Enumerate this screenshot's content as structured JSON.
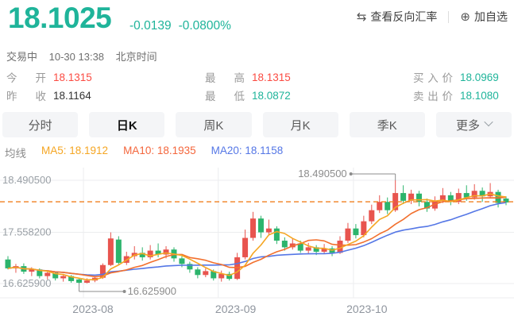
{
  "header": {
    "price": "18.1025",
    "change": "-0.0139",
    "change_pct": "-0.0800%",
    "price_color": "#1fb49a",
    "actions": {
      "reverse_rate": "查看反向汇率",
      "add_watchlist": "加自选"
    },
    "status": {
      "state": "交易中",
      "datetime": "10-30 13:38",
      "timezone": "北京时间"
    }
  },
  "stats": [
    {
      "label": "今开",
      "value": "18.1315",
      "color": "#fb4b42"
    },
    {
      "label": "昨收",
      "value": "18.1164",
      "color": "#333333"
    },
    {
      "label": "最高",
      "value": "18.1315",
      "color": "#fb4b42"
    },
    {
      "label": "最低",
      "value": "18.0872",
      "color": "#1fb49a"
    },
    {
      "label": "买入价",
      "value": "18.0969",
      "color": "#1fb49a"
    },
    {
      "label": "卖出价",
      "value": "18.1080",
      "color": "#1fb49a"
    }
  ],
  "tabs": [
    {
      "label": "分时",
      "active": false
    },
    {
      "label": "日K",
      "active": true
    },
    {
      "label": "周K",
      "active": false
    },
    {
      "label": "月K",
      "active": false
    },
    {
      "label": "季K",
      "active": false
    },
    {
      "label": "更多",
      "active": false,
      "chevron": true
    }
  ],
  "ma_legend": {
    "title": "均线",
    "items": [
      {
        "text": "MA5: 18.1912",
        "color": "#f5a623"
      },
      {
        "text": "MA10: 18.1935",
        "color": "#f4663c"
      },
      {
        "text": "MA20: 18.1158",
        "color": "#5577e6"
      }
    ]
  },
  "chart_data": {
    "type": "candlestick",
    "y_ticks": [
      "18.490500",
      "17.558200",
      "16.625900"
    ],
    "y_tick_values": [
      18.4905,
      17.5582,
      16.6259
    ],
    "x_ticks": [
      "2023-08",
      "2023-09",
      "2023-10"
    ],
    "x_tick_indices": [
      10.75,
      28.8,
      45.4
    ],
    "x_grid_indices": [
      9.55,
      26.6,
      43.7
    ],
    "current_price": 18.1025,
    "ma_periods": [
      5,
      10,
      20
    ],
    "annotations": {
      "high": {
        "label": "18.490500",
        "value": 18.4905,
        "index": 49
      },
      "low": {
        "label": "16.625900",
        "value": 16.6259,
        "index": 9
      }
    },
    "candles": [
      [
        17.06,
        17.12,
        16.88,
        16.9
      ],
      [
        16.9,
        16.98,
        16.82,
        16.94
      ],
      [
        16.94,
        16.99,
        16.8,
        16.84
      ],
      [
        16.84,
        16.92,
        16.76,
        16.88
      ],
      [
        16.88,
        16.9,
        16.72,
        16.76
      ],
      [
        16.76,
        16.86,
        16.7,
        16.82
      ],
      [
        16.82,
        16.84,
        16.68,
        16.72
      ],
      [
        16.72,
        16.8,
        16.66,
        16.76
      ],
      [
        16.76,
        16.78,
        16.64,
        16.67
      ],
      [
        16.7,
        16.72,
        16.6259,
        16.64
      ],
      [
        16.64,
        16.72,
        16.63,
        16.68
      ],
      [
        16.68,
        16.76,
        16.65,
        16.73
      ],
      [
        16.73,
        16.99,
        16.71,
        16.96
      ],
      [
        16.96,
        17.55,
        16.94,
        17.44
      ],
      [
        17.42,
        17.48,
        16.96,
        17.0
      ],
      [
        17.0,
        17.2,
        16.96,
        17.12
      ],
      [
        17.12,
        17.3,
        17.06,
        17.18
      ],
      [
        17.18,
        17.28,
        17.04,
        17.1
      ],
      [
        17.1,
        17.32,
        17.06,
        17.22
      ],
      [
        17.22,
        17.35,
        17.1,
        17.15
      ],
      [
        17.15,
        17.3,
        17.08,
        17.24
      ],
      [
        17.24,
        17.28,
        17.02,
        17.08
      ],
      [
        17.08,
        17.12,
        16.92,
        16.98
      ],
      [
        16.98,
        17.02,
        16.82,
        16.88
      ],
      [
        16.88,
        16.92,
        16.72,
        16.78
      ],
      [
        16.78,
        16.9,
        16.74,
        16.85
      ],
      [
        16.85,
        16.88,
        16.68,
        16.72
      ],
      [
        16.72,
        16.86,
        16.66,
        16.8
      ],
      [
        16.8,
        16.84,
        16.68,
        16.71
      ],
      [
        16.71,
        17.18,
        16.69,
        17.1
      ],
      [
        17.1,
        17.6,
        17.06,
        17.45
      ],
      [
        17.45,
        17.92,
        17.4,
        17.8
      ],
      [
        17.8,
        17.85,
        17.45,
        17.55
      ],
      [
        17.55,
        17.78,
        17.5,
        17.62
      ],
      [
        17.62,
        17.66,
        17.34,
        17.4
      ],
      [
        17.4,
        17.46,
        17.22,
        17.28
      ],
      [
        17.28,
        17.44,
        17.24,
        17.35
      ],
      [
        17.35,
        17.4,
        17.18,
        17.22
      ],
      [
        17.22,
        17.36,
        17.16,
        17.28
      ],
      [
        17.28,
        17.32,
        17.14,
        17.2
      ],
      [
        17.2,
        17.34,
        17.16,
        17.26
      ],
      [
        17.26,
        17.3,
        17.12,
        17.18
      ],
      [
        17.18,
        17.48,
        17.16,
        17.4
      ],
      [
        17.4,
        17.72,
        17.36,
        17.62
      ],
      [
        17.62,
        17.7,
        17.44,
        17.5
      ],
      [
        17.5,
        17.85,
        17.46,
        17.75
      ],
      [
        17.75,
        18.05,
        17.7,
        17.95
      ],
      [
        17.95,
        18.22,
        17.9,
        18.1
      ],
      [
        18.1,
        18.18,
        17.88,
        17.95
      ],
      [
        17.95,
        18.4905,
        17.92,
        18.26
      ],
      [
        18.26,
        18.4,
        18.06,
        18.12
      ],
      [
        18.12,
        18.32,
        18.06,
        18.25
      ],
      [
        18.25,
        18.3,
        18.02,
        18.1
      ],
      [
        18.1,
        18.16,
        17.92,
        17.98
      ],
      [
        17.98,
        18.2,
        17.94,
        18.12
      ],
      [
        18.12,
        18.35,
        18.08,
        18.22
      ],
      [
        18.22,
        18.28,
        18.04,
        18.1
      ],
      [
        18.1,
        18.34,
        18.06,
        18.26
      ],
      [
        18.26,
        18.4,
        18.12,
        18.18
      ],
      [
        18.18,
        18.42,
        18.14,
        18.3
      ],
      [
        18.3,
        18.36,
        18.1,
        18.2
      ],
      [
        18.2,
        18.44,
        18.16,
        18.28
      ],
      [
        18.28,
        18.32,
        18.0,
        18.08
      ],
      [
        18.16,
        18.2,
        18.04,
        18.09
      ]
    ],
    "colors": {
      "up": "#e8544e",
      "down": "#2cb46c",
      "ma5": "#f5a623",
      "ma10": "#f2702e",
      "ma20": "#5577e6",
      "price_line": "#f08021",
      "grid": "#ecedef",
      "axis_text": "#9aa0a6",
      "month_text": "#8f959e",
      "annotation": "#8c8c8c"
    }
  }
}
